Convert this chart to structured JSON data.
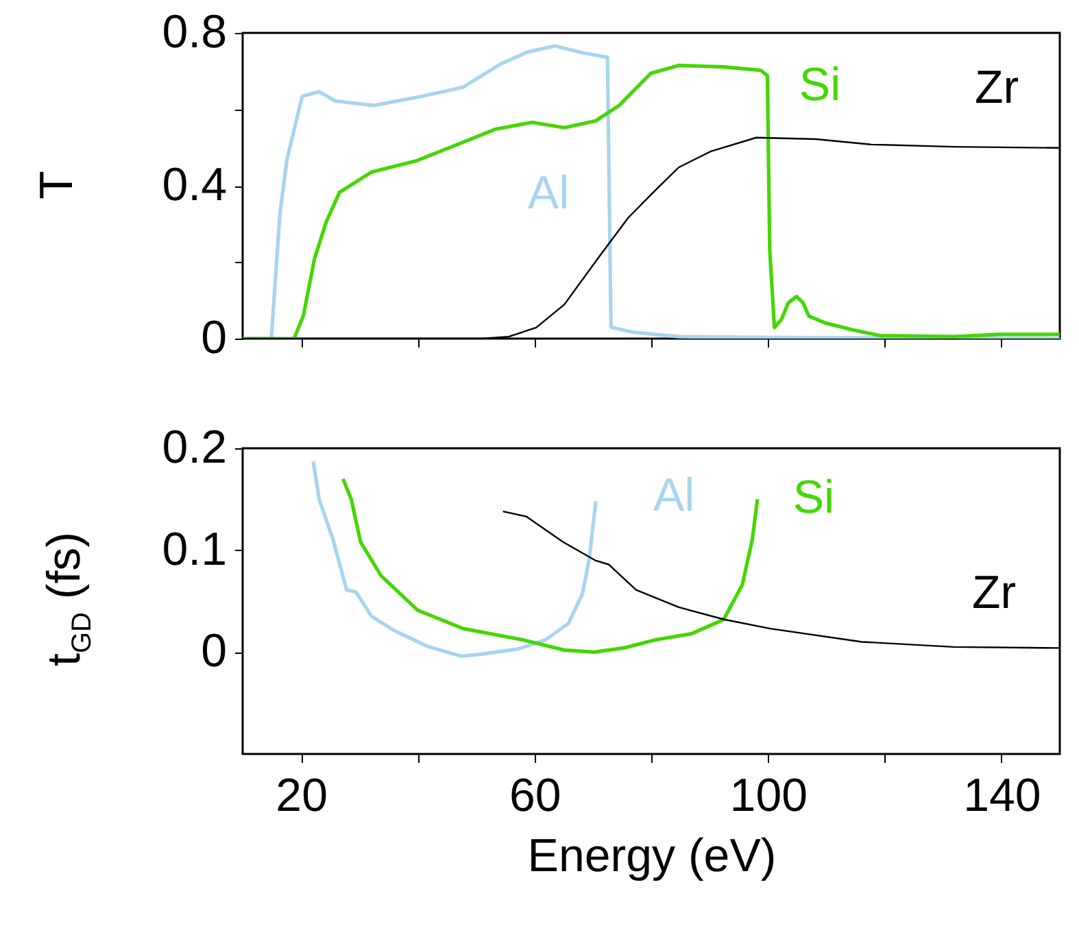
{
  "chart_data": [
    {
      "type": "line",
      "ylabel": "T",
      "xlim": [
        10,
        150
      ],
      "ylim": [
        0,
        0.8
      ],
      "tick_labels": "y",
      "grid": false,
      "xticks": [
        20,
        {
          "value": 40,
          "label": null
        },
        60,
        {
          "value": 80,
          "label": null
        },
        100,
        {
          "value": 120,
          "label": null
        },
        140
      ],
      "yticks": [
        0,
        {
          "value": 0.2,
          "label": null
        },
        0.4,
        {
          "value": 0.6,
          "label": null
        },
        0.8
      ],
      "series": [
        {
          "name": "Al",
          "color": "#a8d4ef",
          "x": [
            10,
            14.9,
            16.4,
            17.6,
            20.2,
            23.1,
            25.8,
            32.5,
            40.7,
            47.8,
            54.1,
            58.8,
            63.5,
            68.2,
            72.5,
            73.1,
            76.8,
            80,
            84.7,
            100.4,
            150
          ],
          "values": [
            0,
            0,
            0.33,
            0.47,
            0.634,
            0.646,
            0.622,
            0.61,
            0.634,
            0.658,
            0.718,
            0.75,
            0.766,
            0.748,
            0.736,
            0.03,
            0.017,
            0.012,
            0.005,
            0.003,
            0
          ]
        },
        {
          "name": "Si",
          "color": "#44d600",
          "x": [
            10,
            18.8,
            20.4,
            22.3,
            24.3,
            26.6,
            32.1,
            39.9,
            47.8,
            53.3,
            59.6,
            65.1,
            70.5,
            74.5,
            76.8,
            79.9,
            84.7,
            92.5,
            98.8,
            99.9,
            100.3,
            101.1,
            102.3,
            103.5,
            104.9,
            106,
            107,
            109.8,
            114.5,
            119.2,
            131.8,
            139.6,
            150
          ],
          "values": [
            0,
            0,
            0.06,
            0.209,
            0.305,
            0.383,
            0.436,
            0.466,
            0.514,
            0.548,
            0.566,
            0.552,
            0.57,
            0.61,
            0.646,
            0.694,
            0.715,
            0.711,
            0.702,
            0.688,
            0.232,
            0.029,
            0.05,
            0.094,
            0.11,
            0.094,
            0.059,
            0.041,
            0.023,
            0.008,
            0.005,
            0.011,
            0.011
          ]
        },
        {
          "name": "Zr",
          "color": "#000000",
          "x": [
            10,
            50.9,
            55.6,
            60.3,
            65.1,
            71.4,
            76.1,
            80.7,
            84.7,
            90.2,
            98,
            108.2,
            117.6,
            131.8,
            150
          ],
          "values": [
            0,
            0,
            0.005,
            0.029,
            0.089,
            0.221,
            0.317,
            0.388,
            0.448,
            0.49,
            0.526,
            0.522,
            0.508,
            0.502,
            0.499
          ]
        }
      ]
    },
    {
      "type": "line",
      "xlabel": "Energy (eV)",
      "ylabel": "t$_{GD}$ (fs)",
      "xlim": [
        10,
        150
      ],
      "ylim": [
        -0.1,
        0.2
      ],
      "grid": false,
      "xticks": [
        20,
        {
          "value": 40,
          "label": null
        },
        60,
        {
          "value": 80,
          "label": null
        },
        100,
        {
          "value": 120,
          "label": null
        },
        140
      ],
      "yticks": [
        0,
        0.1,
        0.2
      ],
      "series": [
        {
          "name": "Al",
          "color": "#a8d4ef",
          "x": [
            22.1,
            23.1,
            25.5,
            27.8,
            29.4,
            32.1,
            36,
            41.5,
            47.4,
            50.9,
            57.2,
            61.9,
            65.8,
            68.2,
            69.4,
            70.5
          ],
          "values": [
            0.187,
            0.15,
            0.11,
            0.061,
            0.059,
            0.035,
            0.021,
            0.006,
            -0.004,
            -0.002,
            0.003,
            0.012,
            0.028,
            0.057,
            0.092,
            0.148
          ]
        },
        {
          "name": "Si",
          "color": "#44d600",
          "x": [
            27.2,
            28.6,
            30.2,
            33.7,
            40,
            47.8,
            58,
            65.1,
            70.2,
            75.3,
            80.7,
            86.9,
            92.4,
            95.6,
            97.3,
            98.2
          ],
          "values": [
            0.17,
            0.15,
            0.108,
            0.075,
            0.041,
            0.023,
            0.012,
            0.002,
            0,
            0.004,
            0.012,
            0.018,
            0.032,
            0.066,
            0.11,
            0.15
          ]
        },
        {
          "name": "Zr",
          "color": "#000000",
          "x": [
            54.6,
            58.6,
            64.9,
            70.4,
            72.7,
            77.4,
            84.7,
            92.5,
            100.4,
            116.1,
            131.8,
            150
          ],
          "values": [
            0.138,
            0.133,
            0.108,
            0.09,
            0.086,
            0.061,
            0.044,
            0.032,
            0.023,
            0.01,
            0.005,
            0.004
          ]
        }
      ]
    }
  ]
}
